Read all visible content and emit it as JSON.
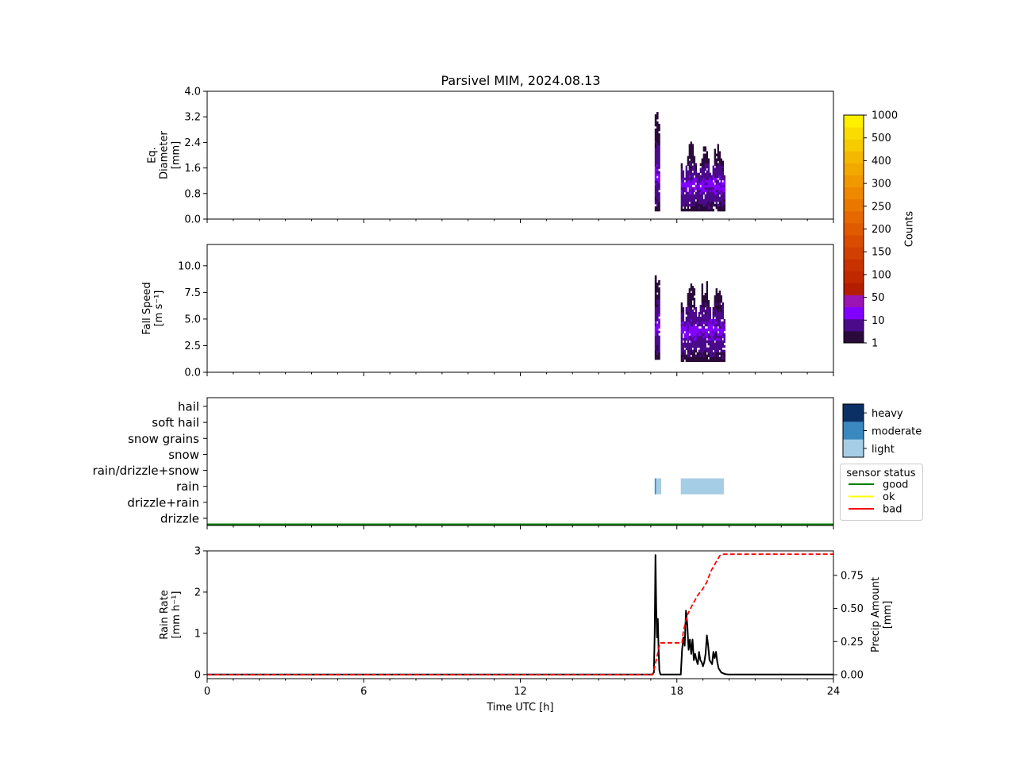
{
  "title": "Parsivel MIM, 2024.08.13",
  "colors": {
    "counts_scale": [
      "#2a0a3a",
      "#4b0a8a",
      "#8200ff",
      "#9b14b4",
      "#b41e00",
      "#c02800",
      "#c83200",
      "#d04000",
      "#d84c00",
      "#e05a00",
      "#e66800",
      "#ea7800",
      "#ee8800",
      "#f09800",
      "#f2a800",
      "#f4b800",
      "#f6cc00",
      "#fadc00",
      "#fff000"
    ],
    "intensity": {
      "light": "#a6cde6",
      "moderate": "#3a88c0",
      "heavy": "#0b3066"
    },
    "status": {
      "good": "#008000",
      "ok": "#ffff00",
      "bad": "#ff0000"
    },
    "rain_rate_line": "#000000",
    "precip_line": "#ff0000"
  },
  "chart_data": [
    {
      "type": "heatmap",
      "name": "diameter-panel",
      "ylabel": [
        "Eq.",
        "Diameter",
        "[mm]"
      ],
      "ylim": [
        0,
        4.0
      ],
      "yticks": [
        "0.0",
        "0.8",
        "1.6",
        "2.4",
        "3.2",
        "4.0"
      ],
      "xlim": [
        0,
        24
      ],
      "occupied_regions": [
        {
          "x_range": [
            17.15,
            17.35
          ],
          "y_range": [
            0.25,
            3.5
          ],
          "peak_counts": 10
        },
        {
          "x_range": [
            18.15,
            19.85
          ],
          "y_range": [
            0.25,
            2.5
          ],
          "peak_counts": 10
        }
      ]
    },
    {
      "type": "heatmap",
      "name": "fall-speed-panel",
      "ylabel": [
        "Fall Speed",
        "[m s⁻¹]"
      ],
      "ylim": [
        0,
        12.0
      ],
      "yticks": [
        "0.0",
        "2.5",
        "5.0",
        "7.5",
        "10.0"
      ],
      "xlim": [
        0,
        24
      ],
      "occupied_regions": [
        {
          "x_range": [
            17.15,
            17.35
          ],
          "y_range": [
            1.2,
            10.0
          ],
          "peak_counts": 10
        },
        {
          "x_range": [
            18.15,
            19.85
          ],
          "y_range": [
            1.0,
            9.0
          ],
          "peak_counts": 10
        }
      ]
    },
    {
      "type": "bar",
      "name": "precip-type-panel",
      "categories": [
        "drizzle",
        "drizzle+rain",
        "rain",
        "rain/drizzle+snow",
        "snow",
        "snow grains",
        "soft hail",
        "hail"
      ],
      "xlim": [
        0,
        24
      ],
      "segments": [
        {
          "category": "rain",
          "start": 17.15,
          "end": 17.2,
          "intensity": "moderate"
        },
        {
          "category": "rain",
          "start": 17.2,
          "end": 17.4,
          "intensity": "light"
        },
        {
          "category": "rain",
          "start": 18.15,
          "end": 19.8,
          "intensity": "light"
        }
      ],
      "sensor_status": [
        {
          "start": 0,
          "end": 24,
          "status": "good"
        }
      ]
    },
    {
      "type": "line",
      "name": "rain-rate-panel",
      "xlabel": "Time UTC [h]",
      "ylabel": [
        "Rain Rate",
        "[mm h⁻¹]"
      ],
      "ylabel_right": [
        "Precip Amount",
        "[mm]"
      ],
      "xlim": [
        0,
        24
      ],
      "xticks": [
        "0",
        "6",
        "12",
        "18",
        "24"
      ],
      "ylim": [
        -0.1,
        3.0
      ],
      "yticks": [
        "0",
        "1",
        "2",
        "3"
      ],
      "ylim_right": [
        -0.03,
        0.935
      ],
      "yticks_right": [
        "0.00",
        "0.25",
        "0.50",
        "0.75"
      ],
      "series": [
        {
          "axis": "left",
          "style": "solid",
          "color": "#000000",
          "points": [
            [
              0,
              0
            ],
            [
              17.05,
              0
            ],
            [
              17.12,
              0.05
            ],
            [
              17.15,
              1.0
            ],
            [
              17.18,
              2.9
            ],
            [
              17.21,
              1.6
            ],
            [
              17.24,
              0.9
            ],
            [
              17.27,
              1.35
            ],
            [
              17.3,
              0.6
            ],
            [
              17.33,
              0.1
            ],
            [
              17.37,
              0
            ],
            [
              18.15,
              0
            ],
            [
              18.2,
              0.6
            ],
            [
              18.25,
              0.9
            ],
            [
              18.3,
              0.7
            ],
            [
              18.35,
              1.55
            ],
            [
              18.4,
              1.2
            ],
            [
              18.45,
              0.6
            ],
            [
              18.5,
              0.85
            ],
            [
              18.55,
              0.5
            ],
            [
              18.6,
              0.85
            ],
            [
              18.65,
              0.35
            ],
            [
              18.7,
              0.5
            ],
            [
              18.75,
              0.35
            ],
            [
              18.8,
              0.25
            ],
            [
              18.85,
              0.55
            ],
            [
              18.9,
              0.35
            ],
            [
              18.95,
              0.3
            ],
            [
              19.0,
              0.2
            ],
            [
              19.05,
              0.3
            ],
            [
              19.1,
              0.5
            ],
            [
              19.15,
              0.95
            ],
            [
              19.2,
              0.7
            ],
            [
              19.25,
              0.35
            ],
            [
              19.3,
              0.3
            ],
            [
              19.35,
              0.25
            ],
            [
              19.4,
              0.55
            ],
            [
              19.45,
              0.4
            ],
            [
              19.5,
              0.55
            ],
            [
              19.55,
              0.3
            ],
            [
              19.6,
              0.15
            ],
            [
              19.7,
              0.05
            ],
            [
              19.85,
              0.01
            ],
            [
              20.0,
              0
            ],
            [
              24,
              0
            ]
          ]
        },
        {
          "axis": "right",
          "style": "dashed",
          "color": "#ff0000",
          "points": [
            [
              0,
              0
            ],
            [
              17.08,
              0
            ],
            [
              17.22,
              0.12
            ],
            [
              17.35,
              0.24
            ],
            [
              18.2,
              0.24
            ],
            [
              18.25,
              0.33
            ],
            [
              18.4,
              0.45
            ],
            [
              18.6,
              0.53
            ],
            [
              18.8,
              0.6
            ],
            [
              19.0,
              0.65
            ],
            [
              19.15,
              0.7
            ],
            [
              19.3,
              0.78
            ],
            [
              19.5,
              0.85
            ],
            [
              19.65,
              0.9
            ],
            [
              19.8,
              0.91
            ],
            [
              24,
              0.91
            ]
          ]
        }
      ]
    }
  ],
  "colorbar_counts": {
    "label": "Counts",
    "tick_labels": [
      "1",
      "10",
      "50",
      "100",
      "150",
      "200",
      "250",
      "300",
      "400",
      "500",
      "1000"
    ]
  },
  "intensity_legend": {
    "labels": [
      "heavy",
      "moderate",
      "light"
    ]
  },
  "status_legend": {
    "title": "sensor status",
    "items": [
      "good",
      "ok",
      "bad"
    ]
  }
}
